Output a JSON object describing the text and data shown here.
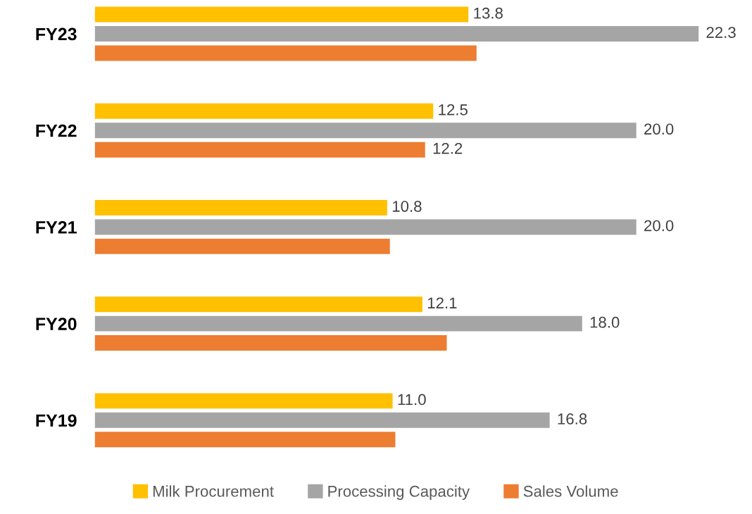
{
  "chart_data": {
    "type": "bar",
    "orientation": "horizontal",
    "categories": [
      "FY23",
      "FY22",
      "FY21",
      "FY20",
      "FY19"
    ],
    "series": [
      {
        "name": "Milk Procurement",
        "color": "#ffc000",
        "values": [
          13.8,
          12.5,
          10.8,
          12.1,
          11.0
        ],
        "value_labels": [
          "13.8",
          "12.5",
          "10.8",
          "12.1",
          "11.0"
        ]
      },
      {
        "name": "Processing Capacity",
        "color": "#a5a5a5",
        "values": [
          22.3,
          20.0,
          20.0,
          18.0,
          16.8
        ],
        "value_labels": [
          "22.3",
          "20.0",
          "20.0",
          "18.0",
          "16.8"
        ]
      },
      {
        "name": "Sales Volume",
        "color": "#ed7d31",
        "values": [
          14.1,
          12.2,
          10.9,
          13.0,
          11.1
        ],
        "value_labels": [
          null,
          "12.2",
          null,
          null,
          null
        ]
      }
    ],
    "legend": "bottom",
    "grid": false
  }
}
